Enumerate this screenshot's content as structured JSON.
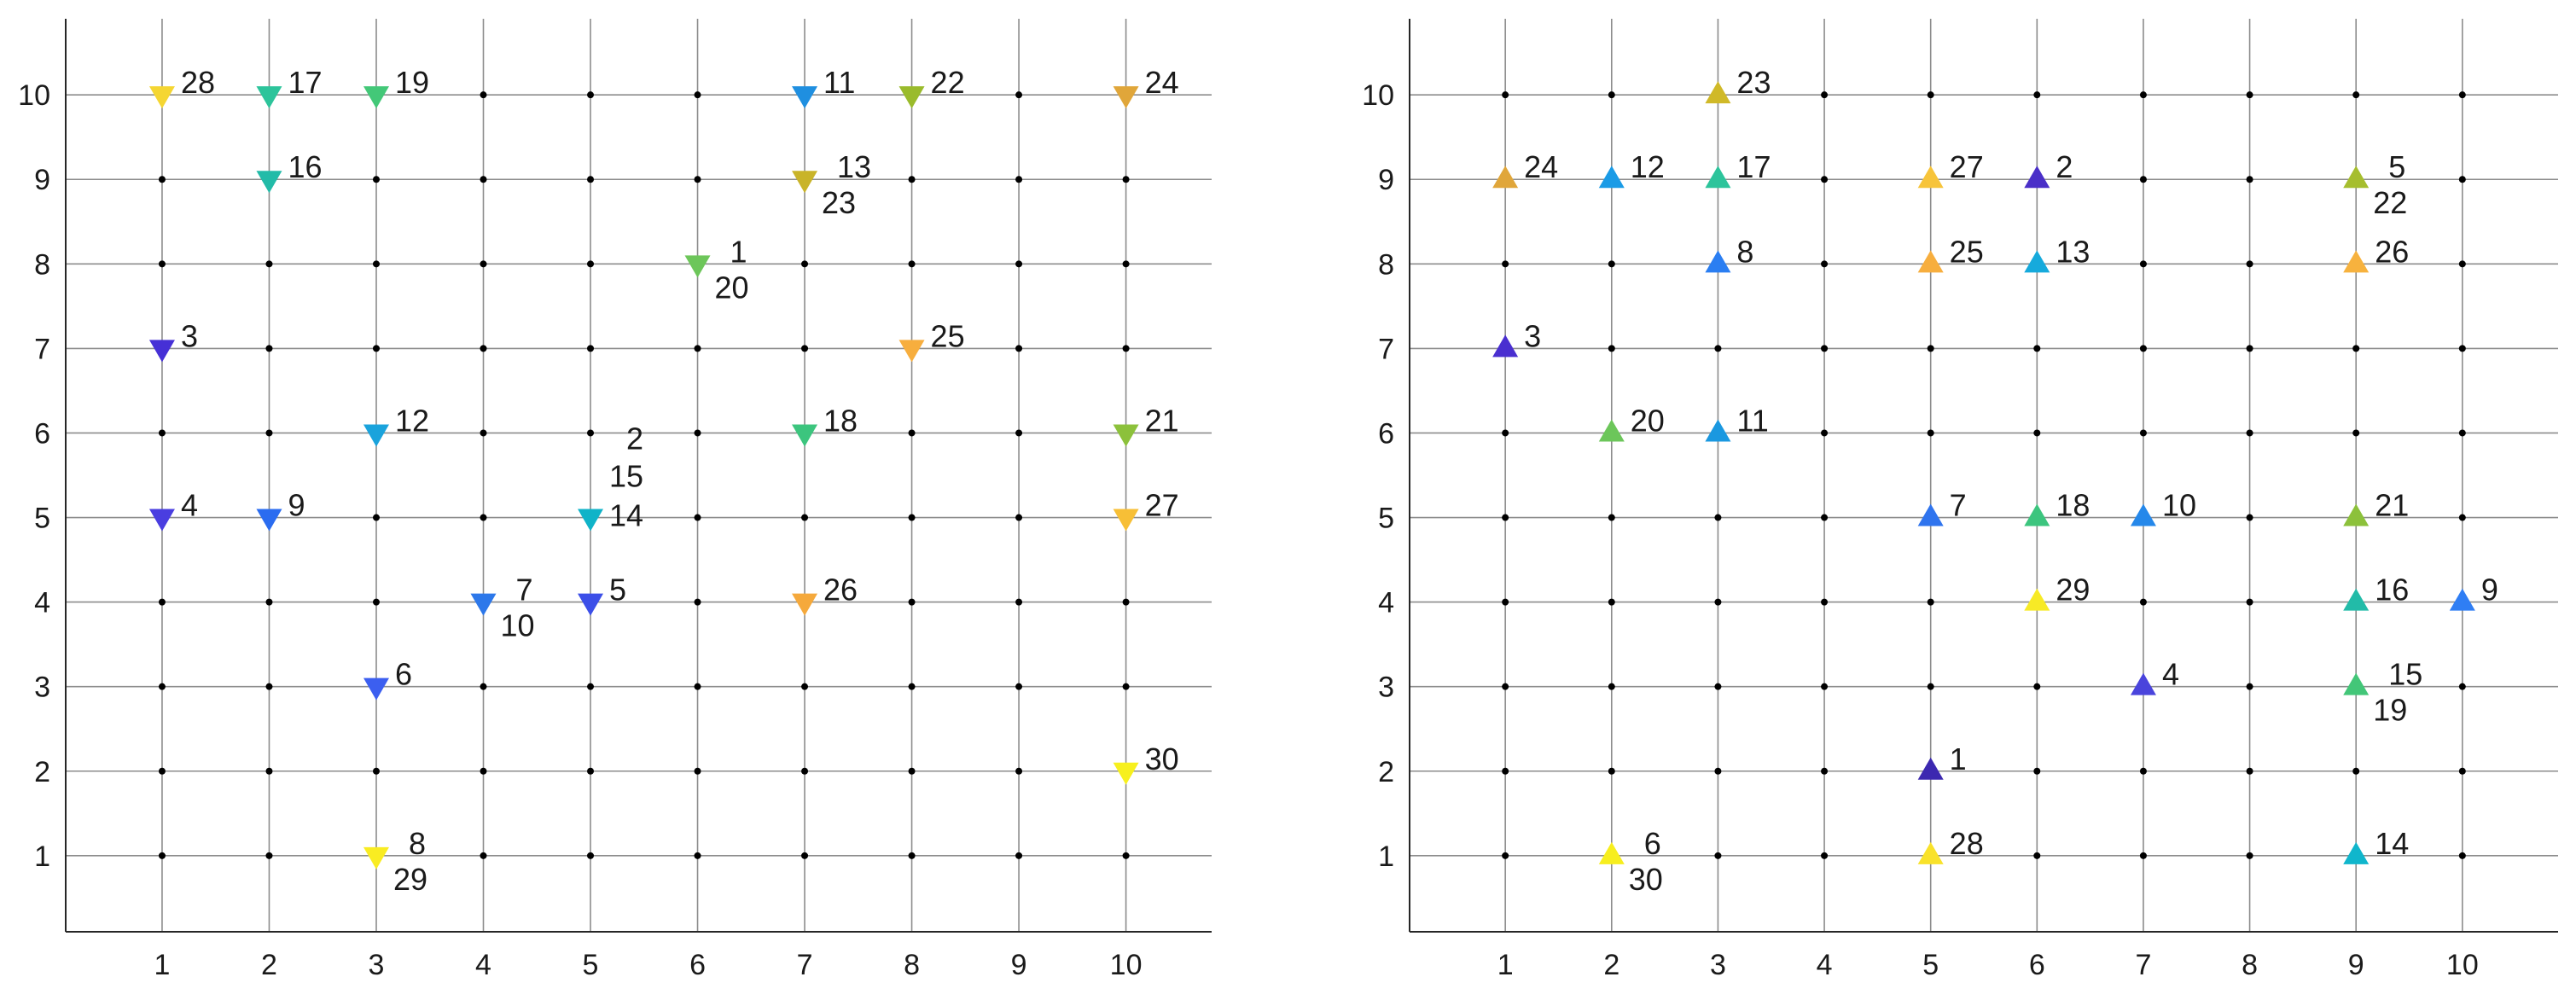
{
  "chart_data": [
    {
      "type": "scatter",
      "marker": "triangle-down",
      "title": "",
      "xlabel": "",
      "ylabel": "",
      "xlim": [
        0.1,
        10.8
      ],
      "ylim": [
        0.1,
        10.9
      ],
      "xticks": [
        1,
        2,
        3,
        4,
        5,
        6,
        7,
        8,
        9,
        10
      ],
      "yticks": [
        1,
        2,
        3,
        4,
        5,
        6,
        7,
        8,
        9,
        10
      ],
      "grid": true,
      "points": [
        {
          "x": 1,
          "y": 10,
          "color": "#f5d632",
          "labels": [
            "28"
          ]
        },
        {
          "x": 2,
          "y": 10,
          "color": "#2dc49b",
          "labels": [
            "17"
          ]
        },
        {
          "x": 3,
          "y": 10,
          "color": "#43c878",
          "labels": [
            "19"
          ]
        },
        {
          "x": 7,
          "y": 10,
          "color": "#1f8fe0",
          "labels": [
            "11"
          ]
        },
        {
          "x": 8,
          "y": 10,
          "color": "#9abb2c",
          "labels": [
            "22"
          ]
        },
        {
          "x": 10,
          "y": 10,
          "color": "#e0a63a",
          "labels": [
            "24"
          ]
        },
        {
          "x": 2,
          "y": 9,
          "color": "#22bba8",
          "labels": [
            "16"
          ]
        },
        {
          "x": 7,
          "y": 9,
          "color": "#c9b429",
          "labels": [
            "13",
            "23"
          ]
        },
        {
          "x": 6,
          "y": 8,
          "color": "#6dc65a",
          "labels": [
            "1",
            "20"
          ]
        },
        {
          "x": 1,
          "y": 7,
          "color": "#4630d6",
          "labels": [
            "3"
          ]
        },
        {
          "x": 8,
          "y": 7,
          "color": "#f7ae3e",
          "labels": [
            "25"
          ]
        },
        {
          "x": 3,
          "y": 6,
          "color": "#1aa3dc",
          "labels": [
            "12"
          ]
        },
        {
          "x": 7,
          "y": 6,
          "color": "#3cc57e",
          "labels": [
            "18"
          ]
        },
        {
          "x": 10,
          "y": 6,
          "color": "#8cc13b",
          "labels": [
            "21"
          ]
        },
        {
          "x": 1,
          "y": 5,
          "color": "#4a3ee0",
          "labels": [
            "4"
          ]
        },
        {
          "x": 2,
          "y": 5,
          "color": "#2a6cf0",
          "labels": [
            "9"
          ]
        },
        {
          "x": 5,
          "y": 5,
          "color": "#10b3c8",
          "labels": [
            "2",
            "15",
            "14"
          ]
        },
        {
          "x": 10,
          "y": 5,
          "color": "#f7bf36",
          "labels": [
            "27"
          ]
        },
        {
          "x": 4,
          "y": 4,
          "color": "#2d78ea",
          "labels": [
            "7",
            "10"
          ]
        },
        {
          "x": 5,
          "y": 4,
          "color": "#3c4fe8",
          "labels": [
            "5"
          ]
        },
        {
          "x": 7,
          "y": 4,
          "color": "#f5a93c",
          "labels": [
            "26"
          ]
        },
        {
          "x": 3,
          "y": 3,
          "color": "#3c5ff0",
          "labels": [
            "6"
          ]
        },
        {
          "x": 10,
          "y": 2,
          "color": "#f7f01e",
          "labels": [
            "30"
          ]
        },
        {
          "x": 3,
          "y": 1,
          "color": "#f9ec22",
          "labels": [
            "8",
            "29"
          ]
        }
      ]
    },
    {
      "type": "scatter",
      "marker": "triangle-up",
      "title": "",
      "xlabel": "",
      "ylabel": "",
      "xlim": [
        0.1,
        10.9
      ],
      "ylim": [
        0.1,
        10.9
      ],
      "xticks": [
        1,
        2,
        3,
        4,
        5,
        6,
        7,
        8,
        9,
        10
      ],
      "yticks": [
        1,
        2,
        3,
        4,
        5,
        6,
        7,
        8,
        9,
        10
      ],
      "grid": true,
      "points": [
        {
          "x": 3,
          "y": 10,
          "color": "#d0b928",
          "labels": [
            "23"
          ]
        },
        {
          "x": 1,
          "y": 9,
          "color": "#e0a63a",
          "labels": [
            "24"
          ]
        },
        {
          "x": 2,
          "y": 9,
          "color": "#1a9be6",
          "labels": [
            "12"
          ]
        },
        {
          "x": 3,
          "y": 9,
          "color": "#2dc49b",
          "labels": [
            "17"
          ]
        },
        {
          "x": 5,
          "y": 9,
          "color": "#f7c43a",
          "labels": [
            "27"
          ]
        },
        {
          "x": 6,
          "y": 9,
          "color": "#4a2fc8",
          "labels": [
            "2"
          ]
        },
        {
          "x": 9,
          "y": 9,
          "color": "#a6be2e",
          "labels": [
            "5",
            "22"
          ]
        },
        {
          "x": 3,
          "y": 8,
          "color": "#2a7ef2",
          "labels": [
            "8"
          ]
        },
        {
          "x": 5,
          "y": 8,
          "color": "#f7ae3e",
          "labels": [
            "25"
          ]
        },
        {
          "x": 6,
          "y": 8,
          "color": "#16aadc",
          "labels": [
            "13"
          ]
        },
        {
          "x": 9,
          "y": 8,
          "color": "#f7b23e",
          "labels": [
            "26"
          ]
        },
        {
          "x": 1,
          "y": 7,
          "color": "#4a2fd0",
          "labels": [
            "3"
          ]
        },
        {
          "x": 2,
          "y": 6,
          "color": "#6cc65a",
          "labels": [
            "20"
          ]
        },
        {
          "x": 3,
          "y": 6,
          "color": "#1a98e0",
          "labels": [
            "11"
          ]
        },
        {
          "x": 5,
          "y": 5,
          "color": "#2f74ee",
          "labels": [
            "7"
          ]
        },
        {
          "x": 6,
          "y": 5,
          "color": "#3cc57e",
          "labels": [
            "18"
          ]
        },
        {
          "x": 7,
          "y": 5,
          "color": "#2588ea",
          "labels": [
            "10"
          ]
        },
        {
          "x": 9,
          "y": 5,
          "color": "#8cc13b",
          "labels": [
            "21"
          ]
        },
        {
          "x": 6,
          "y": 4,
          "color": "#f7ea26",
          "labels": [
            "29"
          ]
        },
        {
          "x": 9,
          "y": 4,
          "color": "#22bba8",
          "labels": [
            "16"
          ]
        },
        {
          "x": 10,
          "y": 4,
          "color": "#2f7ef4",
          "labels": [
            "9"
          ]
        },
        {
          "x": 7,
          "y": 3,
          "color": "#4a44dc",
          "labels": [
            "4"
          ]
        },
        {
          "x": 9,
          "y": 3,
          "color": "#43c678",
          "labels": [
            "15",
            "19"
          ]
        },
        {
          "x": 5,
          "y": 2,
          "color": "#3c28b0",
          "labels": [
            "1"
          ]
        },
        {
          "x": 2,
          "y": 1,
          "color": "#f7ee1e",
          "labels": [
            "6",
            "30"
          ]
        },
        {
          "x": 5,
          "y": 1,
          "color": "#f9e22a",
          "labels": [
            "28"
          ]
        },
        {
          "x": 9,
          "y": 1,
          "color": "#10b6cc",
          "labels": [
            "14"
          ]
        }
      ]
    }
  ]
}
